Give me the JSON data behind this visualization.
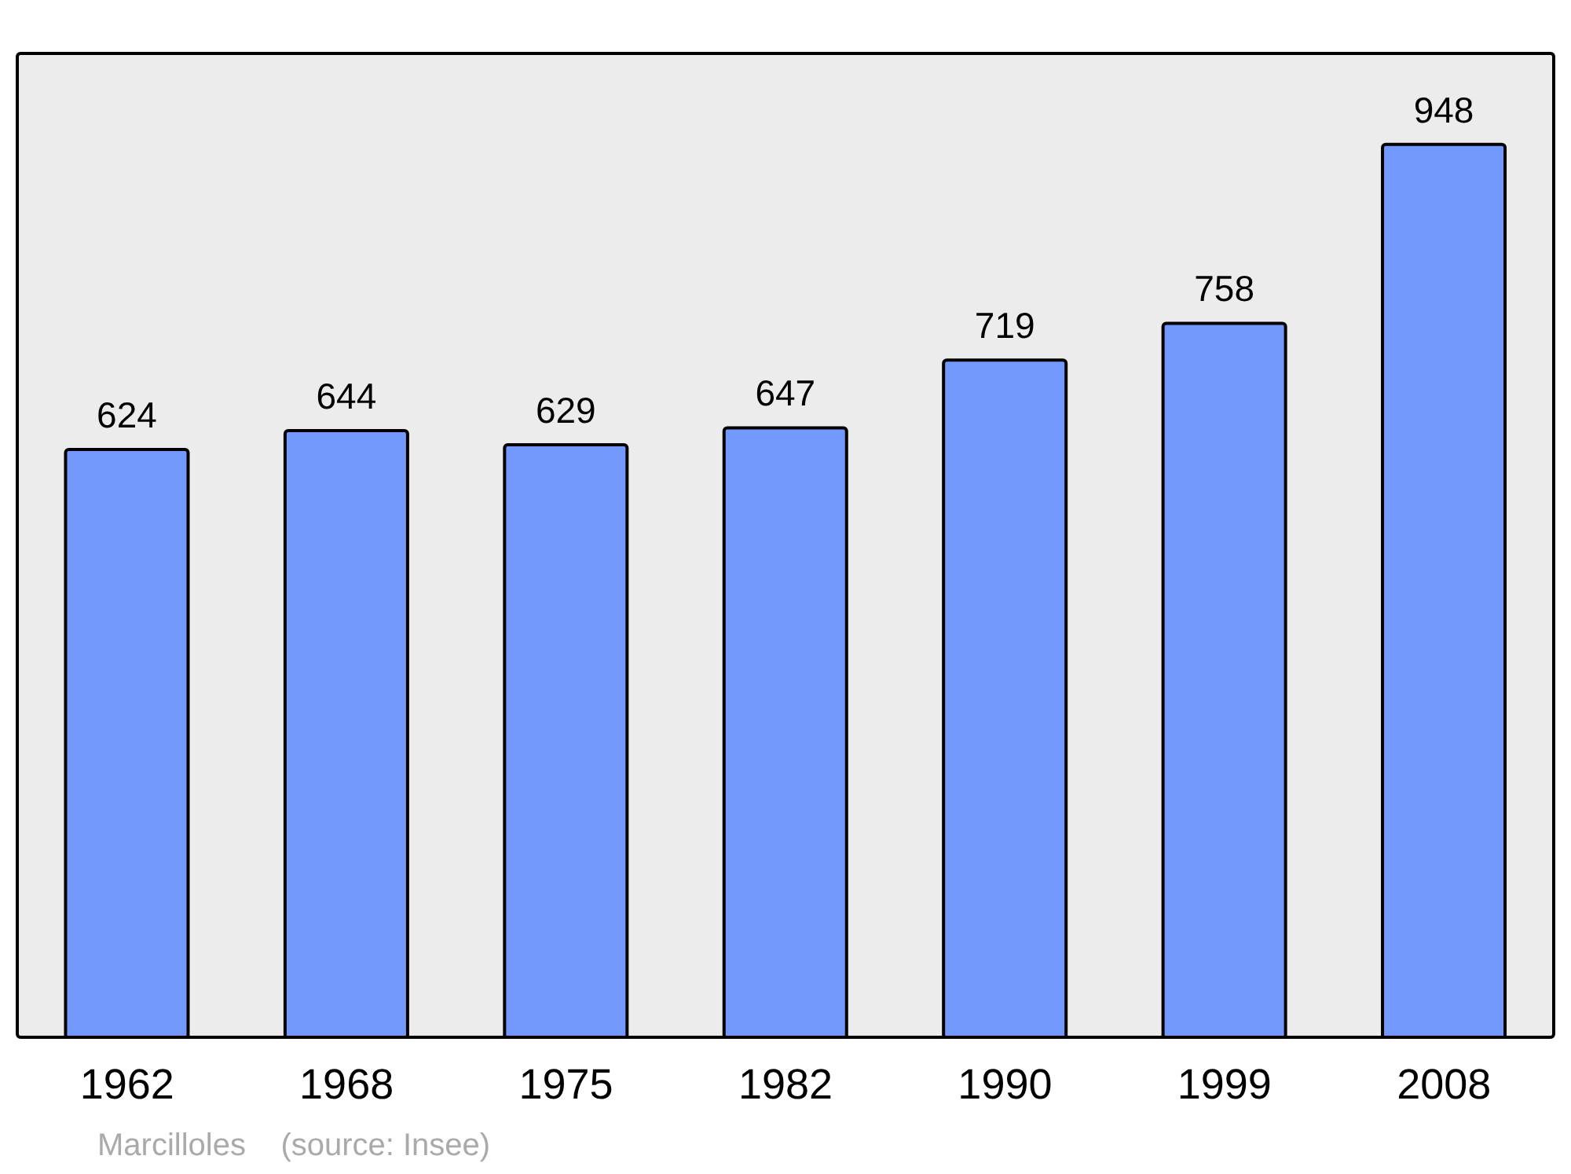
{
  "chart_data": {
    "type": "bar",
    "categories": [
      "1962",
      "1968",
      "1975",
      "1982",
      "1990",
      "1999",
      "2008"
    ],
    "values": [
      624,
      644,
      629,
      647,
      719,
      758,
      948
    ],
    "color": "#7399ff",
    "data_labels": true,
    "annotations": [
      "Marcilloles    (source: Insee)"
    ]
  }
}
